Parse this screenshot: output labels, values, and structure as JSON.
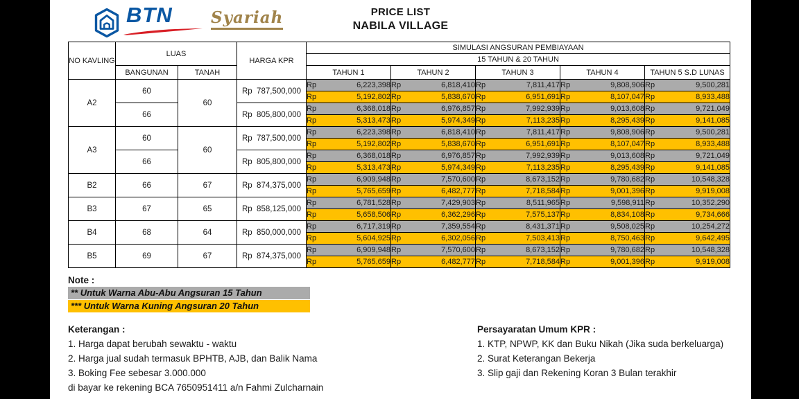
{
  "page": {
    "title_line1": "PRICE LIST",
    "title_line2": "NABILA VILLAGE"
  },
  "logo": {
    "brand": "BTN",
    "sub_brand": "Syariah",
    "colors": {
      "blue": "#0a57a3",
      "gold": "#a0834a",
      "red": "#d81f26"
    }
  },
  "table": {
    "headers": {
      "no_kavling": "NO KAVLING",
      "luas": "LUAS",
      "bangunan": "BANGUNAN",
      "tanah": "TANAH",
      "harga_kpr": "HARGA KPR",
      "simulasi": "SIMULASI ANGSURAN PEMBIAYAAN",
      "tenor": "15 TAHUN & 20 TAHUN",
      "years": [
        "TAHUN 1",
        "TAHUN 2",
        "TAHUN 3",
        "TAHUN 4",
        "TAHUN 5 S.D LUNAS"
      ]
    },
    "currency_prefix": "Rp",
    "colors": {
      "gray_15yr": "#ababab",
      "yellow_20yr": "#ffc000"
    },
    "groups": [
      {
        "kavling": "A2",
        "tanah": "60",
        "units": [
          {
            "bangunan": "60",
            "harga": "Rp  787,500,000",
            "angsuran_15": [
              "6,223,398",
              "6,818,410",
              "7,811,417",
              "9,808,906",
              "9,500,281"
            ],
            "angsuran_20": [
              "5,192,802",
              "5,838,670",
              "6,951,691",
              "8,107,047",
              "8,933,488"
            ]
          },
          {
            "bangunan": "66",
            "harga": "Rp  805,800,000",
            "angsuran_15": [
              "6,368,018",
              "6,976,857",
              "7,992,939",
              "9,013,608",
              "9,721,049"
            ],
            "angsuran_20": [
              "5,313,473",
              "5,974,349",
              "7,113,235",
              "8,295,439",
              "9,141,085"
            ]
          }
        ]
      },
      {
        "kavling": "A3",
        "tanah": "60",
        "units": [
          {
            "bangunan": "60",
            "harga": "Rp  787,500,000",
            "angsuran_15": [
              "6,223,398",
              "6,818,410",
              "7,811,417",
              "9,808,906",
              "9,500,281"
            ],
            "angsuran_20": [
              "5,192,802",
              "5,838,670",
              "6,951,691",
              "8,107,047",
              "8,933,488"
            ]
          },
          {
            "bangunan": "66",
            "harga": "Rp  805,800,000",
            "angsuran_15": [
              "6,368,018",
              "6,976,857",
              "7,992,939",
              "9,013,608",
              "9,721,049"
            ],
            "angsuran_20": [
              "5,313,473",
              "5,974,349",
              "7,113,235",
              "8,295,439",
              "9,141,085"
            ]
          }
        ]
      },
      {
        "kavling": "B2",
        "tanah": "67",
        "units": [
          {
            "bangunan": "66",
            "harga": "Rp  874,375,000",
            "angsuran_15": [
              "6,909,948",
              "7,570,600",
              "8,673,152",
              "9,780,682",
              "10,548,328"
            ],
            "angsuran_20": [
              "5,765,659",
              "6,482,777",
              "7,718,584",
              "9,001,396",
              "9,919,008"
            ]
          }
        ]
      },
      {
        "kavling": "B3",
        "tanah": "65",
        "units": [
          {
            "bangunan": "67",
            "harga": "Rp  858,125,000",
            "angsuran_15": [
              "6,781,528",
              "7,429,903",
              "8,511,965",
              "9,598,911",
              "10,352,290"
            ],
            "angsuran_20": [
              "5,658,506",
              "6,362,296",
              "7,575,137",
              "8,834,108",
              "9,734,666"
            ]
          }
        ]
      },
      {
        "kavling": "B4",
        "tanah": "64",
        "units": [
          {
            "bangunan": "68",
            "harga": "Rp  850,000,000",
            "angsuran_15": [
              "6,717,319",
              "7,359,554",
              "8,431,371",
              "9,508,025",
              "10,254,272"
            ],
            "angsuran_20": [
              "5,604,925",
              "6,302,056",
              "7,503,413",
              "8,750,463",
              "9,642,495"
            ]
          }
        ]
      },
      {
        "kavling": "B5",
        "tanah": "67",
        "units": [
          {
            "bangunan": "69",
            "harga": "Rp  874,375,000",
            "angsuran_15": [
              "6,909,948",
              "7,570,600",
              "8,673,152",
              "9,780,682",
              "10,548,328"
            ],
            "angsuran_20": [
              "5,765,659",
              "6,482,777",
              "7,718,584",
              "9,001,396",
              "9,919,008"
            ]
          }
        ]
      }
    ]
  },
  "notes": {
    "title": "Note :",
    "gray_note": "** Untuk Warna Abu-Abu Angsuran 15 Tahun",
    "yellow_note": "*** Untuk Warna Kuning Angsuran 20 Tahun"
  },
  "keterangan": {
    "title": "Keterangan :",
    "items": [
      "1. Harga dapat berubah sewaktu - waktu",
      "2. Harga jual sudah termasuk BPHTB, AJB, dan Balik Nama",
      "3. Boking Fee sebesar 3.000.000",
      "di bayar ke rekening BCA 7650951411 a/n Fahmi Zulcharnain"
    ]
  },
  "persyaratan": {
    "title": "Persayaratan Umum KPR :",
    "items": [
      "1. KTP, NPWP, KK dan Buku Nikah (Jika suda berkeluarga)",
      "2. Surat Keterangan Bekerja",
      "3. Slip gaji dan Rekening Koran 3 Bulan terakhir"
    ]
  }
}
